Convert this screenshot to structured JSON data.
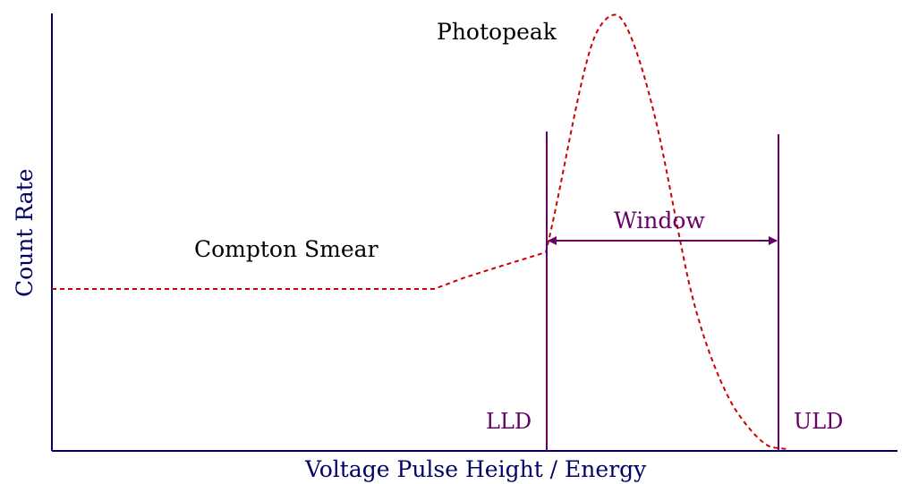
{
  "diagram": {
    "axes": {
      "x_label": "Voltage Pulse Height / Energy",
      "y_label": "Count Rate"
    },
    "annotations": {
      "photopeak": "Photopeak",
      "compton": "Compton Smear",
      "window": "Window",
      "lld": "LLD",
      "uld": "ULD"
    },
    "colors": {
      "axis": "#000066",
      "curve": "#cc0000",
      "markers": "#660066",
      "text": "#000000"
    }
  }
}
